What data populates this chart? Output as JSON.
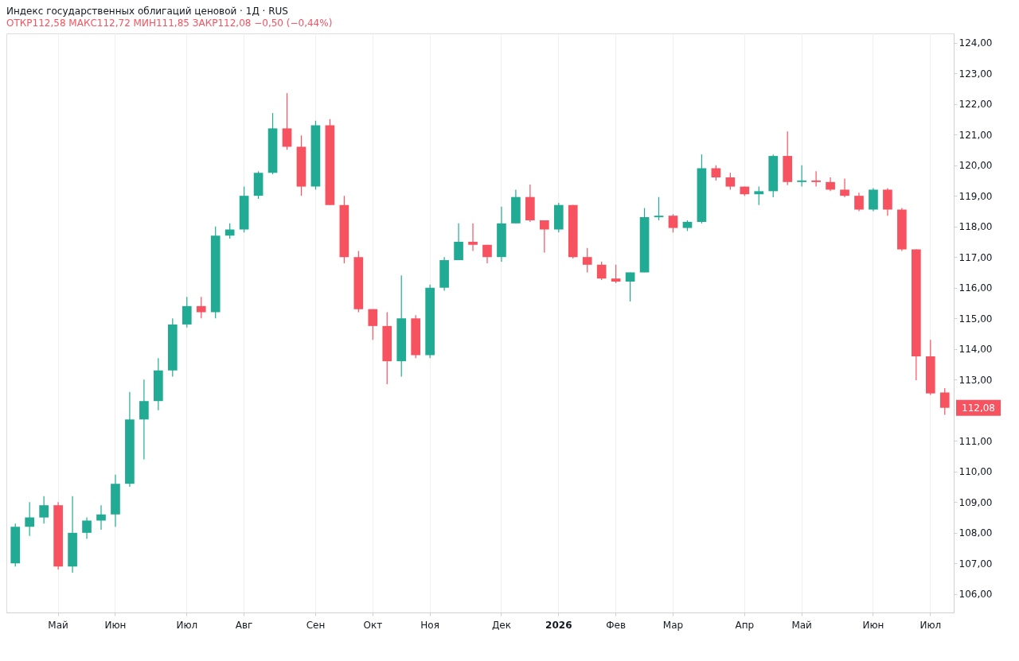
{
  "chart_data": {
    "type": "candlestick",
    "title": "Индекс государственных облигаций ценовой · 1Д · RUS",
    "subtitle": "ОТКР112,58 МАКС112,72 МИН111,85 ЗАКР112,08 −0,50 (−0,44%)",
    "categories": [
      null,
      null,
      null,
      "Май",
      null,
      null,
      null,
      "Июн",
      null,
      null,
      null,
      null,
      "Июл",
      null,
      null,
      null,
      "Авг",
      null,
      null,
      null,
      null,
      "Сен",
      null,
      null,
      null,
      "Окт",
      null,
      null,
      null,
      "Ноя",
      null,
      null,
      null,
      null,
      "Дек",
      null,
      null,
      null,
      "2026",
      null,
      null,
      null,
      "Фев",
      null,
      null,
      null,
      "Мар",
      null,
      null,
      null,
      null,
      "Апр",
      null,
      null,
      null,
      "Май",
      null,
      null,
      null,
      null,
      "Июн",
      null,
      null,
      null,
      "Июл",
      null
    ],
    "ohlc": [
      [
        107.0,
        108.3,
        106.9,
        108.2
      ],
      [
        108.2,
        109.0,
        107.9,
        108.5
      ],
      [
        108.5,
        109.2,
        108.3,
        108.9
      ],
      [
        108.9,
        109.0,
        106.8,
        106.9
      ],
      [
        106.9,
        109.2,
        106.7,
        108.0
      ],
      [
        108.0,
        108.5,
        107.8,
        108.4
      ],
      [
        108.4,
        108.9,
        108.1,
        108.6
      ],
      [
        108.6,
        109.9,
        108.2,
        109.6
      ],
      [
        109.6,
        112.6,
        109.5,
        111.7
      ],
      [
        111.7,
        113.0,
        110.4,
        112.3
      ],
      [
        112.3,
        113.7,
        112.0,
        113.3
      ],
      [
        113.3,
        115.0,
        113.1,
        114.8
      ],
      [
        114.8,
        115.7,
        114.7,
        115.4
      ],
      [
        115.4,
        115.7,
        115.0,
        115.2
      ],
      [
        115.2,
        118.0,
        115.0,
        117.7
      ],
      [
        117.7,
        118.1,
        117.6,
        117.9
      ],
      [
        117.9,
        119.3,
        117.8,
        119.0
      ],
      [
        119.0,
        119.8,
        118.9,
        119.75
      ],
      [
        119.75,
        121.7,
        119.7,
        121.2
      ],
      [
        121.2,
        122.35,
        120.5,
        120.6
      ],
      [
        120.6,
        120.97,
        119.0,
        119.3
      ],
      [
        119.3,
        121.45,
        119.2,
        121.3
      ],
      [
        121.3,
        121.5,
        118.7,
        118.7
      ],
      [
        118.7,
        119.0,
        116.8,
        117.0
      ],
      [
        117.0,
        117.2,
        115.2,
        115.3
      ],
      [
        115.3,
        115.3,
        114.3,
        114.75
      ],
      [
        114.75,
        115.2,
        112.85,
        113.6
      ],
      [
        113.6,
        116.4,
        113.1,
        115.0
      ],
      [
        115.0,
        115.1,
        113.7,
        113.8
      ],
      [
        113.8,
        116.1,
        113.7,
        116.0
      ],
      [
        116.0,
        117.0,
        115.9,
        116.9
      ],
      [
        116.9,
        118.1,
        116.9,
        117.5
      ],
      [
        117.5,
        118.1,
        117.2,
        117.4
      ],
      [
        117.4,
        117.4,
        116.8,
        117.0
      ],
      [
        117.0,
        118.65,
        116.85,
        118.1
      ],
      [
        118.1,
        119.2,
        118.1,
        118.96
      ],
      [
        118.96,
        119.37,
        118.15,
        118.2
      ],
      [
        118.2,
        118.2,
        117.15,
        117.9
      ],
      [
        117.9,
        118.77,
        117.8,
        118.7
      ],
      [
        118.7,
        118.7,
        116.95,
        117.0
      ],
      [
        117.0,
        117.3,
        116.5,
        116.75
      ],
      [
        116.75,
        116.85,
        116.25,
        116.3
      ],
      [
        116.3,
        116.75,
        116.15,
        116.2
      ],
      [
        116.2,
        116.5,
        115.55,
        116.5
      ],
      [
        116.5,
        118.6,
        116.5,
        118.3
      ],
      [
        118.3,
        118.96,
        118.2,
        118.35
      ],
      [
        118.35,
        118.4,
        117.8,
        117.95
      ],
      [
        117.95,
        118.2,
        117.85,
        118.15
      ],
      [
        118.15,
        120.35,
        118.1,
        119.9
      ],
      [
        119.9,
        120.0,
        119.5,
        119.6
      ],
      [
        119.6,
        119.75,
        119.2,
        119.3
      ],
      [
        119.3,
        119.3,
        119.0,
        119.05
      ],
      [
        119.05,
        119.3,
        118.7,
        119.15
      ],
      [
        119.15,
        120.35,
        118.95,
        120.3
      ],
      [
        120.3,
        121.1,
        119.35,
        119.45
      ],
      [
        119.45,
        120.0,
        119.3,
        119.5
      ],
      [
        119.5,
        119.8,
        119.3,
        119.45
      ],
      [
        119.45,
        119.6,
        119.15,
        119.2
      ],
      [
        119.2,
        119.56,
        118.95,
        119.0
      ],
      [
        119.0,
        119.1,
        118.5,
        118.55
      ],
      [
        118.55,
        119.25,
        118.5,
        119.2
      ],
      [
        119.2,
        119.25,
        118.35,
        118.55
      ],
      [
        118.55,
        118.6,
        117.2,
        117.25
      ],
      [
        117.25,
        117.25,
        112.98,
        113.76
      ],
      [
        113.76,
        114.3,
        112.5,
        112.55
      ],
      [
        112.58,
        112.72,
        111.85,
        112.08
      ]
    ],
    "colors": [
      "#22ab94",
      "#22ab94",
      "#22ab94",
      "#f7525f",
      "#22ab94",
      "#22ab94",
      "#22ab94",
      "#22ab94",
      "#22ab94",
      "#22ab94",
      "#22ab94",
      "#22ab94",
      "#22ab94",
      "#f7525f",
      "#22ab94",
      "#22ab94",
      "#22ab94",
      "#22ab94",
      "#22ab94",
      "#f7525f",
      "#f7525f",
      "#22ab94",
      "#f7525f",
      "#f7525f",
      "#f7525f",
      "#f7525f",
      "#f7525f",
      "#22ab94",
      "#f7525f",
      "#22ab94",
      "#22ab94",
      "#22ab94",
      "#f7525f",
      "#f7525f",
      "#22ab94",
      "#22ab94",
      "#f7525f",
      "#f7525f",
      "#22ab94",
      "#f7525f",
      "#f7525f",
      "#f7525f",
      "#f7525f",
      "#22ab94",
      "#22ab94",
      "#22ab94",
      "#f7525f",
      "#22ab94",
      "#22ab94",
      "#f7525f",
      "#f7525f",
      "#f7525f",
      "#22ab94",
      "#22ab94",
      "#f7525f",
      "#22ab94",
      "#f7525f",
      "#f7525f",
      "#f7525f",
      "#f7525f",
      "#22ab94",
      "#f7525f",
      "#f7525f",
      "#f7525f",
      "#f7525f",
      "#f7525f"
    ],
    "ylim": [
      105.4,
      124.3
    ],
    "yticks": [
      {
        "value": 106,
        "label": "106,00"
      },
      {
        "value": 107,
        "label": "107,00"
      },
      {
        "value": 108,
        "label": "108,00"
      },
      {
        "value": 109,
        "label": "109,00"
      },
      {
        "value": 110,
        "label": "110,00"
      },
      {
        "value": 111,
        "label": "111,00"
      },
      {
        "value": 113,
        "label": "113,00"
      },
      {
        "value": 114,
        "label": "114,00"
      },
      {
        "value": 115,
        "label": "115,00"
      },
      {
        "value": 116,
        "label": "116,00"
      },
      {
        "value": 117,
        "label": "117,00"
      },
      {
        "value": 118,
        "label": "118,00"
      },
      {
        "value": 119,
        "label": "119,00"
      },
      {
        "value": 120,
        "label": "120,00"
      },
      {
        "value": 121,
        "label": "121,00"
      },
      {
        "value": 122,
        "label": "122,00"
      },
      {
        "value": 123,
        "label": "123,00"
      },
      {
        "value": 124,
        "label": "124,00"
      }
    ],
    "annotations": [
      "112,08"
    ],
    "grid": "x"
  }
}
